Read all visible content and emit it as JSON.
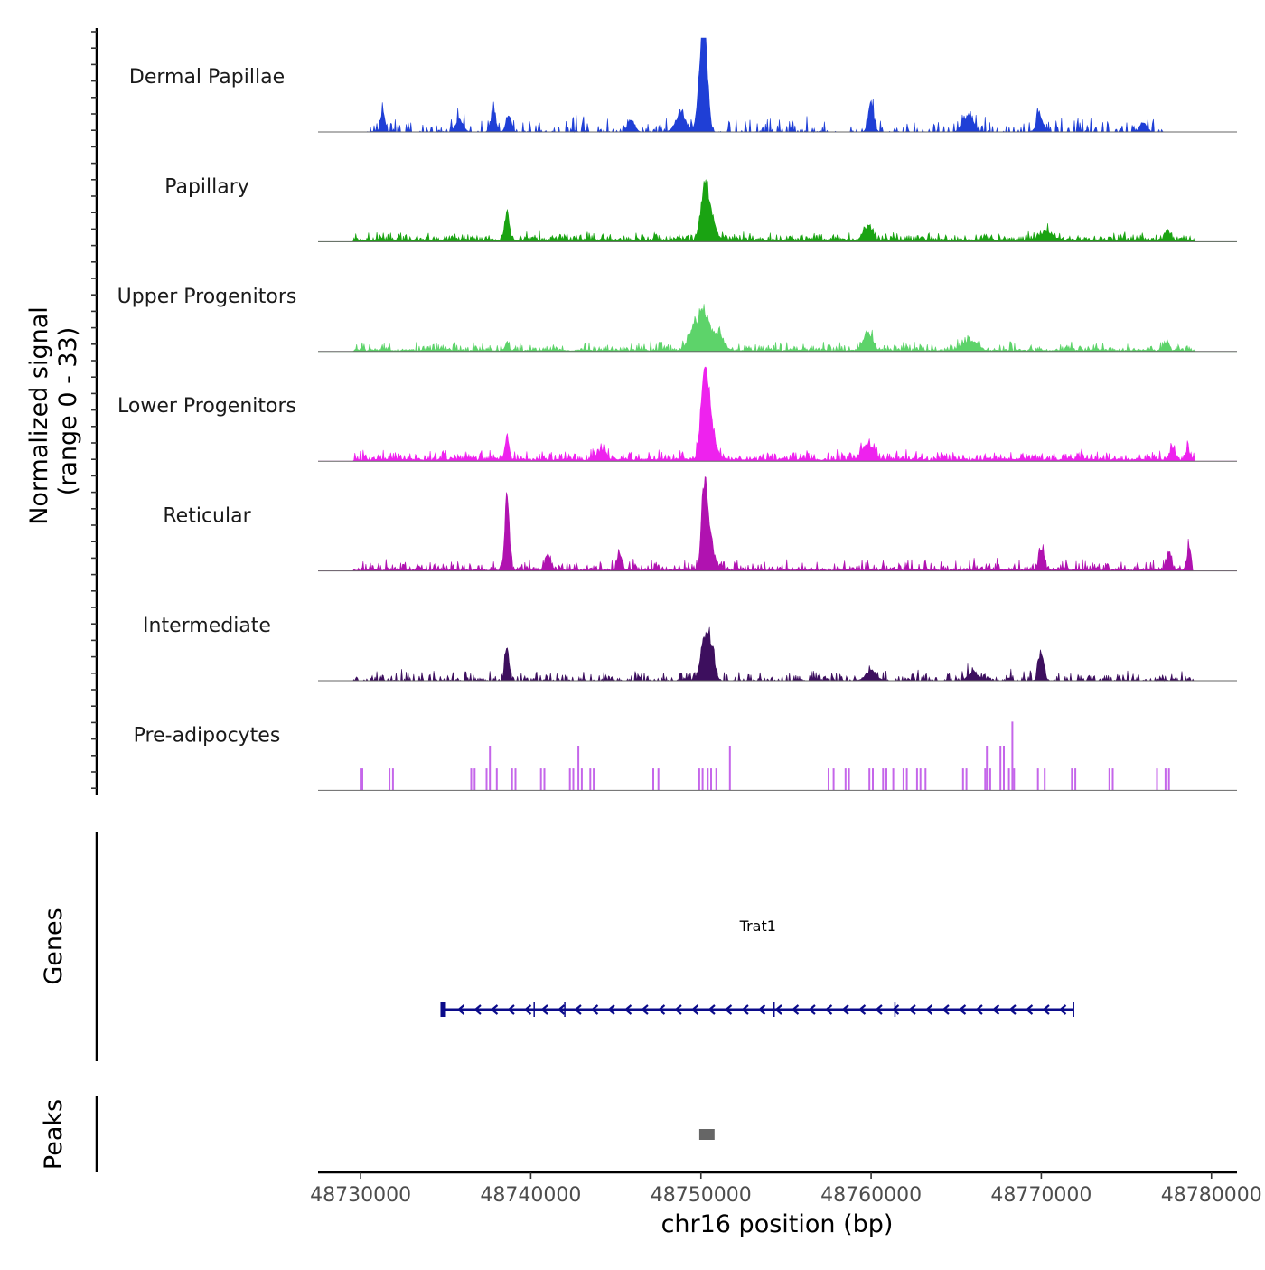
{
  "chart_data": {
    "type": "area",
    "title": "",
    "region": {
      "chromosome": "chr16",
      "start": 48727500,
      "end": 48781500
    },
    "signal_panel": {
      "ylabel_line1": "Normalized signal",
      "ylabel_line2": "(range 0 - 33)",
      "ylim": [
        0,
        33
      ],
      "tracks": [
        {
          "name": "Dermal Papillae",
          "color": "#1f3fd6",
          "seed": 11,
          "noise_density": 0.38,
          "noise_level": 0.09,
          "baseline": 0.0,
          "data_start": 48730400,
          "data_end": 48777400,
          "peaks": [
            [
              48750200,
              1.0,
              180
            ],
            [
              48750050,
              0.6,
              220
            ],
            [
              48760000,
              0.34,
              160
            ],
            [
              48738700,
              0.2,
              150
            ],
            [
              48731300,
              0.25,
              120
            ],
            [
              48735800,
              0.16,
              200
            ],
            [
              48737800,
              0.2,
              160
            ],
            [
              48745900,
              0.15,
              200
            ],
            [
              48748800,
              0.22,
              300
            ],
            [
              48765700,
              0.2,
              300
            ],
            [
              48769900,
              0.2,
              180
            ],
            [
              48776000,
              0.12,
              200
            ]
          ]
        },
        {
          "name": "Papillary",
          "color": "#1aa312",
          "seed": 23,
          "noise_density": 0.8,
          "noise_level": 0.045,
          "baseline": 0.015,
          "data_start": 48729600,
          "data_end": 48779000,
          "peaks": [
            [
              48750200,
              0.48,
              220
            ],
            [
              48750500,
              0.3,
              300
            ],
            [
              48738600,
              0.32,
              120
            ],
            [
              48759800,
              0.17,
              250
            ],
            [
              48770300,
              0.1,
              400
            ],
            [
              48777400,
              0.12,
              150
            ]
          ]
        },
        {
          "name": "Upper Progenitors",
          "color": "#5dd36a",
          "seed": 37,
          "noise_density": 0.62,
          "noise_level": 0.05,
          "baseline": 0.01,
          "data_start": 48729600,
          "data_end": 48779000,
          "peaks": [
            [
              48750200,
              0.46,
              250
            ],
            [
              48749600,
              0.28,
              300
            ],
            [
              48751000,
              0.2,
              300
            ],
            [
              48759800,
              0.22,
              250
            ],
            [
              48765800,
              0.12,
              400
            ],
            [
              48738600,
              0.1,
              100
            ],
            [
              48777400,
              0.12,
              120
            ]
          ]
        },
        {
          "name": "Lower Progenitors",
          "color": "#ee22ee",
          "seed": 41,
          "noise_density": 0.7,
          "noise_level": 0.055,
          "baseline": 0.015,
          "data_start": 48729600,
          "data_end": 48779000,
          "peaks": [
            [
              48750200,
              0.85,
              200
            ],
            [
              48750500,
              0.45,
              300
            ],
            [
              48738600,
              0.27,
              120
            ],
            [
              48759800,
              0.2,
              300
            ],
            [
              48744200,
              0.14,
              200
            ],
            [
              48777700,
              0.14,
              150
            ],
            [
              48778600,
              0.12,
              120
            ]
          ]
        },
        {
          "name": "Reticular",
          "color": "#b012b0",
          "seed": 53,
          "noise_density": 0.6,
          "noise_level": 0.06,
          "baseline": 0.01,
          "data_start": 48729600,
          "data_end": 48778900,
          "peaks": [
            [
              48738600,
              0.85,
              130
            ],
            [
              48750200,
              0.95,
              160
            ],
            [
              48750500,
              0.35,
              250
            ],
            [
              48741000,
              0.2,
              150
            ],
            [
              48745200,
              0.2,
              120
            ],
            [
              48770000,
              0.25,
              150
            ],
            [
              48777500,
              0.2,
              150
            ],
            [
              48778700,
              0.3,
              100
            ]
          ]
        },
        {
          "name": "Intermediate",
          "color": "#3d0f5e",
          "seed": 67,
          "noise_density": 0.55,
          "noise_level": 0.06,
          "baseline": 0.0,
          "data_start": 48729600,
          "data_end": 48779000,
          "peaks": [
            [
              48750200,
              0.48,
              220
            ],
            [
              48750600,
              0.38,
              200
            ],
            [
              48738600,
              0.38,
              120
            ],
            [
              48770000,
              0.35,
              150
            ],
            [
              48760000,
              0.12,
              300
            ],
            [
              48766000,
              0.1,
              300
            ]
          ]
        }
      ],
      "preadipocytes": {
        "name": "Pre-adipocytes",
        "color": "#c566ea",
        "spikes": [
          [
            48730000,
            0.32
          ],
          [
            48730100,
            0.32
          ],
          [
            48731700,
            0.32
          ],
          [
            48731900,
            0.32
          ],
          [
            48736500,
            0.32
          ],
          [
            48736700,
            0.32
          ],
          [
            48737400,
            0.32
          ],
          [
            48737600,
            0.65
          ],
          [
            48738000,
            0.32
          ],
          [
            48738900,
            0.32
          ],
          [
            48739100,
            0.32
          ],
          [
            48740600,
            0.32
          ],
          [
            48740800,
            0.32
          ],
          [
            48742300,
            0.32
          ],
          [
            48742500,
            0.32
          ],
          [
            48742800,
            0.65
          ],
          [
            48743000,
            0.32
          ],
          [
            48743500,
            0.32
          ],
          [
            48743700,
            0.32
          ],
          [
            48747200,
            0.32
          ],
          [
            48747500,
            0.32
          ],
          [
            48749900,
            0.32
          ],
          [
            48750100,
            0.32
          ],
          [
            48750400,
            0.32
          ],
          [
            48750600,
            0.32
          ],
          [
            48750900,
            0.32
          ],
          [
            48751700,
            0.65
          ],
          [
            48757500,
            0.32
          ],
          [
            48757800,
            0.32
          ],
          [
            48758500,
            0.32
          ],
          [
            48758700,
            0.32
          ],
          [
            48759900,
            0.32
          ],
          [
            48760100,
            0.32
          ],
          [
            48760700,
            0.32
          ],
          [
            48760900,
            0.32
          ],
          [
            48761300,
            0.32
          ],
          [
            48761900,
            0.32
          ],
          [
            48762100,
            0.32
          ],
          [
            48762700,
            0.32
          ],
          [
            48762900,
            0.32
          ],
          [
            48763200,
            0.32
          ],
          [
            48765400,
            0.32
          ],
          [
            48765600,
            0.32
          ],
          [
            48766700,
            0.32
          ],
          [
            48766800,
            0.65
          ],
          [
            48767000,
            0.32
          ],
          [
            48767600,
            0.65
          ],
          [
            48767800,
            0.65
          ],
          [
            48768100,
            0.32
          ],
          [
            48768300,
            1.0
          ],
          [
            48768400,
            0.32
          ],
          [
            48769800,
            0.32
          ],
          [
            48770200,
            0.32
          ],
          [
            48771800,
            0.32
          ],
          [
            48772000,
            0.32
          ],
          [
            48774000,
            0.32
          ],
          [
            48774200,
            0.32
          ],
          [
            48776800,
            0.32
          ],
          [
            48777300,
            0.32
          ],
          [
            48777500,
            0.32
          ]
        ]
      }
    },
    "genes_panel": {
      "ylabel": "Genes",
      "color": "#0b0b8a",
      "genes": [
        {
          "name": "Trat1",
          "start": 48734800,
          "end": 48771900,
          "strand": "-",
          "exons": [
            [
              48734800,
              48735000
            ]
          ],
          "marks": [
            48740200,
            48742000,
            48754300,
            48761400
          ]
        }
      ]
    },
    "peaks_panel": {
      "ylabel": "Peaks",
      "color": "#666666",
      "peaks": [
        [
          48749900,
          48750800
        ]
      ]
    },
    "x_axis": {
      "xlabel": "chr16 position (bp)",
      "ticks": [
        48730000,
        48740000,
        48750000,
        48760000,
        48770000,
        48780000
      ],
      "tick_labels": [
        "48730000",
        "48740000",
        "48750000",
        "48760000",
        "48770000",
        "48780000"
      ]
    }
  }
}
